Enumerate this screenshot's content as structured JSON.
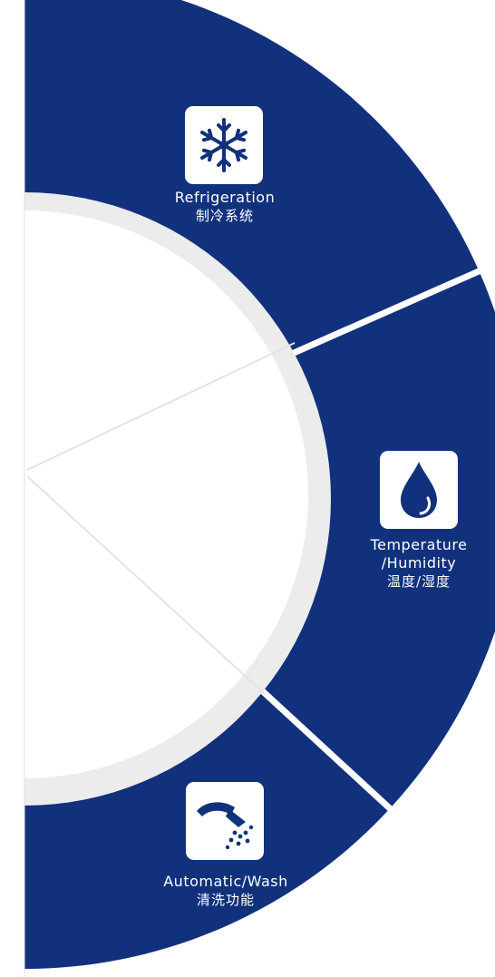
{
  "colors": {
    "primary": "#12317d",
    "ring": "#ececec",
    "background": "#ffffff"
  },
  "segments": [
    {
      "id": "refrigeration",
      "icon": "snowflake-icon",
      "label_en": "Refrigeration",
      "label_zh": "制冷系统"
    },
    {
      "id": "temperature-humidity",
      "icon": "water-drop-icon",
      "label_en_line1": "Temperature",
      "label_en_line2": "/Humidity",
      "label_zh": "温度/湿度"
    },
    {
      "id": "automatic-wash",
      "icon": "shower-icon",
      "label_en": "Automatic/Wash",
      "label_zh": "清洗功能"
    }
  ]
}
